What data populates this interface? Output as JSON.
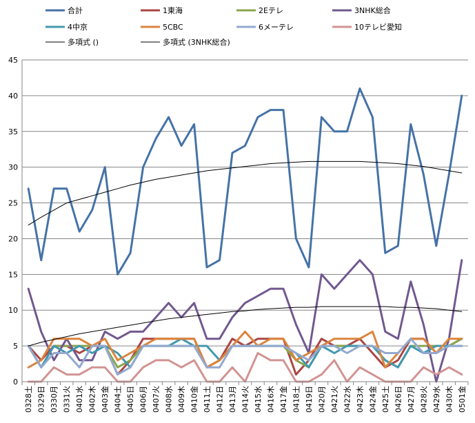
{
  "chart_data": {
    "type": "line",
    "categories": [
      "0328土",
      "0329日",
      "0330月",
      "0331火",
      "0401水",
      "0402木",
      "0403金",
      "0404土",
      "0405日",
      "0406月",
      "0407火",
      "0408水",
      "0409木",
      "0410金",
      "0411土",
      "0412日",
      "0413月",
      "0414火",
      "0415水",
      "0416木",
      "0417金",
      "0418土",
      "0419日",
      "0420月",
      "0421火",
      "0422水",
      "0423木",
      "0424金",
      "0425土",
      "0426日",
      "0427月",
      "0428火",
      "0429水",
      "0430木",
      "0501金"
    ],
    "ylim": [
      0,
      45
    ],
    "yticks": [
      0,
      5,
      10,
      15,
      20,
      25,
      30,
      35,
      40,
      45
    ],
    "grid": "horizontal",
    "legend": "top",
    "series": [
      {
        "name": "合計",
        "color": "#4572a7",
        "width": 3,
        "values": [
          27,
          17,
          27,
          27,
          21,
          24,
          30,
          15,
          18,
          30,
          34,
          37,
          33,
          36,
          16,
          17,
          32,
          33,
          37,
          38,
          38,
          20,
          16,
          37,
          35,
          35,
          41,
          37,
          18,
          19,
          36,
          29,
          19,
          29,
          40
        ]
      },
      {
        "name": "1東海",
        "color": "#aa4643",
        "width": 3,
        "values": [
          5,
          3,
          5,
          5,
          4,
          5,
          5,
          1,
          3,
          6,
          6,
          6,
          6,
          6,
          2,
          3,
          6,
          5,
          6,
          6,
          6,
          1,
          3,
          6,
          5,
          5,
          6,
          4,
          2,
          3,
          6,
          6,
          4,
          5,
          6
        ]
      },
      {
        "name": "2Eテレ",
        "color": "#89a54e",
        "width": 3,
        "values": [
          5,
          2,
          5,
          5,
          5,
          5,
          5,
          2,
          3,
          5,
          5,
          5,
          5,
          5,
          2,
          3,
          5,
          5,
          5,
          5,
          5,
          3,
          2,
          5,
          5,
          5,
          5,
          5,
          3,
          2,
          5,
          5,
          5,
          5,
          6
        ]
      },
      {
        "name": "3NHK総合",
        "color": "#71588f",
        "width": 3,
        "values": [
          13,
          7,
          3,
          6,
          3,
          3,
          7,
          6,
          7,
          7,
          9,
          11,
          9,
          11,
          6,
          6,
          9,
          11,
          12,
          13,
          13,
          8,
          4,
          15,
          13,
          15,
          17,
          15,
          7,
          6,
          14,
          8,
          0,
          6,
          17
        ]
      },
      {
        "name": "4中京",
        "color": "#4198af",
        "width": 3,
        "values": [
          5,
          2,
          5,
          4,
          5,
          4,
          5,
          4,
          2,
          5,
          5,
          5,
          6,
          5,
          5,
          3,
          5,
          5,
          5,
          5,
          5,
          4,
          2,
          5,
          4,
          5,
          5,
          5,
          3,
          2,
          5,
          4,
          5,
          5,
          5
        ]
      },
      {
        "name": "5CBC",
        "color": "#db843d",
        "width": 3,
        "values": [
          2,
          3,
          6,
          6,
          6,
          5,
          6,
          3,
          4,
          5,
          6,
          6,
          6,
          6,
          2,
          3,
          5,
          7,
          5,
          6,
          6,
          3,
          4,
          5,
          6,
          6,
          6,
          7,
          2,
          4,
          6,
          6,
          4,
          6,
          6
        ]
      },
      {
        "name": "6メーテレ",
        "color": "#93a9cf",
        "width": 3,
        "values": [
          5,
          2,
          4,
          4,
          2,
          5,
          5,
          1,
          2,
          5,
          5,
          5,
          5,
          5,
          2,
          2,
          5,
          5,
          5,
          5,
          5,
          4,
          3,
          5,
          5,
          4,
          5,
          5,
          4,
          4,
          6,
          4,
          4,
          5,
          5
        ]
      },
      {
        "name": "10テレビ愛知",
        "color": "#d19392",
        "width": 3,
        "values": [
          0,
          0,
          2,
          1,
          1,
          2,
          2,
          0,
          0,
          2,
          3,
          3,
          2,
          3,
          0,
          0,
          2,
          0,
          4,
          3,
          3,
          0,
          0,
          1,
          3,
          0,
          2,
          1,
          0,
          0,
          0,
          2,
          1,
          2,
          1
        ]
      },
      {
        "name": "多項式 ()",
        "color": "#000000",
        "width": 1,
        "trend": true,
        "values": [
          21.9,
          23.0,
          24.0,
          25.0,
          25.5,
          26.0,
          26.5,
          27.0,
          27.5,
          27.9,
          28.3,
          28.6,
          28.9,
          29.2,
          29.5,
          29.7,
          29.9,
          30.1,
          30.3,
          30.5,
          30.6,
          30.7,
          30.8,
          30.8,
          30.8,
          30.8,
          30.8,
          30.7,
          30.6,
          30.5,
          30.3,
          30.1,
          29.8,
          29.5,
          29.2
        ]
      },
      {
        "name": "多項式 (3NHK総合)",
        "color": "#000000",
        "width": 1,
        "trend": true,
        "values": [
          5.0,
          5.5,
          5.9,
          6.3,
          6.7,
          7.0,
          7.3,
          7.6,
          7.9,
          8.2,
          8.5,
          8.8,
          9.0,
          9.2,
          9.4,
          9.6,
          9.8,
          9.9,
          10.1,
          10.2,
          10.3,
          10.4,
          10.4,
          10.5,
          10.5,
          10.5,
          10.5,
          10.5,
          10.5,
          10.4,
          10.4,
          10.3,
          10.2,
          10.0,
          9.8
        ]
      }
    ]
  }
}
